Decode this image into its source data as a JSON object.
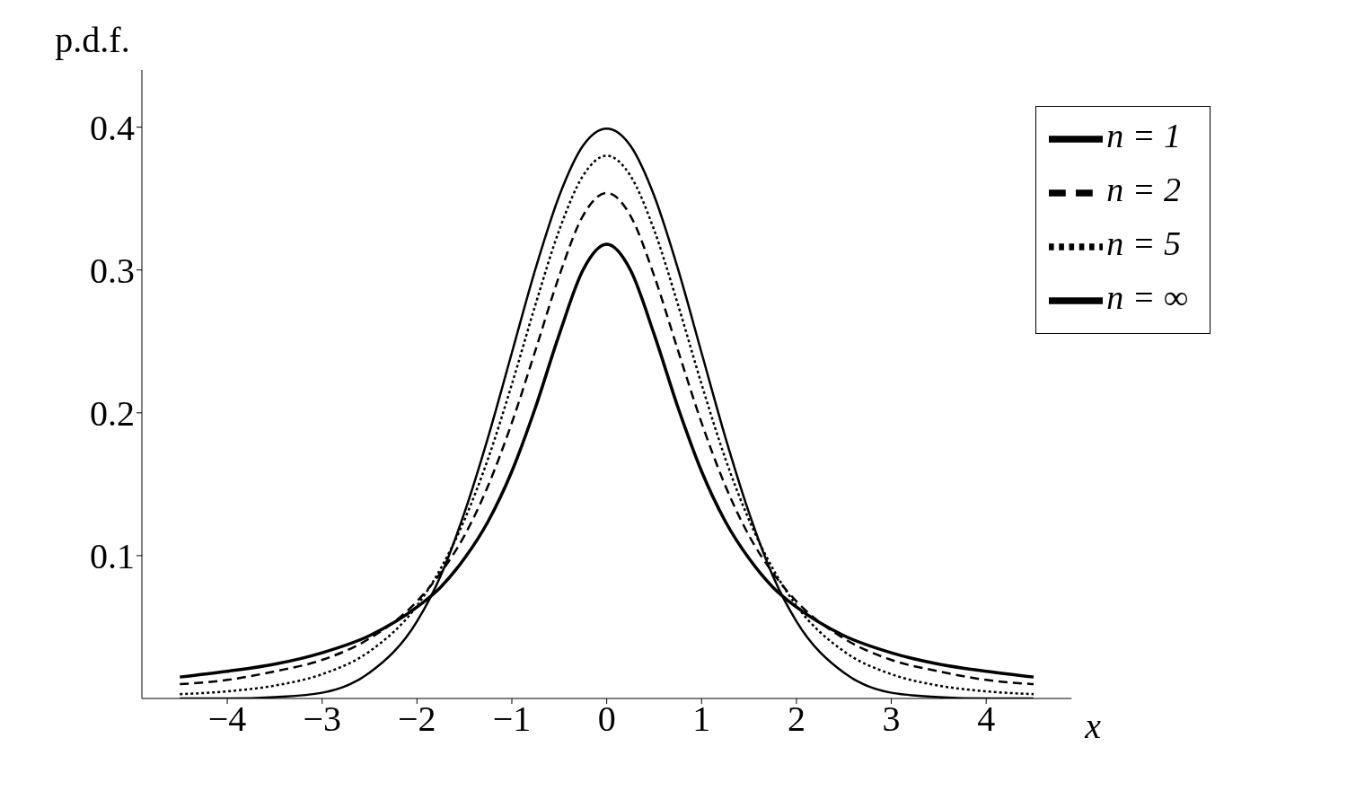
{
  "chart_data": {
    "type": "line",
    "xlabel": "x",
    "ylabel": "p.d.f.",
    "x": [
      -4.5,
      -4,
      -3.5,
      -3,
      -2.5,
      -2,
      -1.75,
      -1.5,
      -1.25,
      -1,
      -0.75,
      -0.5,
      -0.25,
      0,
      0.25,
      0.5,
      0.75,
      1,
      1.25,
      1.5,
      1.75,
      2,
      2.5,
      3,
      3.5,
      4,
      4.5
    ],
    "series": [
      {
        "name": "n = 1",
        "color": "#000000",
        "line_style": "solid",
        "values": [
          0.015,
          0.019,
          0.024,
          0.032,
          0.044,
          0.064,
          0.078,
          0.098,
          0.124,
          0.159,
          0.204,
          0.255,
          0.3,
          0.318,
          0.3,
          0.255,
          0.204,
          0.159,
          0.124,
          0.098,
          0.078,
          0.064,
          0.044,
          0.032,
          0.024,
          0.019,
          0.015
        ]
      },
      {
        "name": "n = 2",
        "color": "#000000",
        "line_style": "dashed",
        "values": [
          0.01,
          0.013,
          0.019,
          0.027,
          0.042,
          0.068,
          0.088,
          0.114,
          0.149,
          0.193,
          0.244,
          0.296,
          0.338,
          0.354,
          0.338,
          0.296,
          0.244,
          0.193,
          0.149,
          0.114,
          0.088,
          0.068,
          0.042,
          0.027,
          0.019,
          0.013,
          0.01
        ]
      },
      {
        "name": "n = 5",
        "color": "#000000",
        "line_style": "dotted",
        "values": [
          0.003,
          0.005,
          0.009,
          0.017,
          0.033,
          0.065,
          0.091,
          0.125,
          0.168,
          0.22,
          0.276,
          0.328,
          0.366,
          0.38,
          0.366,
          0.328,
          0.276,
          0.22,
          0.168,
          0.125,
          0.091,
          0.065,
          0.033,
          0.017,
          0.009,
          0.005,
          0.003
        ]
      },
      {
        "name": "n = ∞",
        "color": "#000000",
        "line_style": "solid",
        "values": [
          0.0,
          0.0,
          0.001,
          0.004,
          0.018,
          0.054,
          0.086,
          0.13,
          0.183,
          0.242,
          0.301,
          0.352,
          0.387,
          0.399,
          0.387,
          0.352,
          0.301,
          0.242,
          0.183,
          0.13,
          0.086,
          0.054,
          0.018,
          0.004,
          0.001,
          0.0,
          0.0
        ]
      }
    ],
    "xlim": [
      -4.9,
      4.9
    ],
    "ylim": [
      0,
      0.44
    ],
    "xticks": [
      {
        "value": -4,
        "label": "−4"
      },
      {
        "value": -3,
        "label": "−3"
      },
      {
        "value": -2,
        "label": "−2"
      },
      {
        "value": -1,
        "label": "−1"
      },
      0,
      1,
      2,
      3,
      4
    ],
    "yticks": [
      0.1,
      0.2,
      0.3,
      0.4
    ],
    "marker": "none",
    "legend": "top right"
  }
}
